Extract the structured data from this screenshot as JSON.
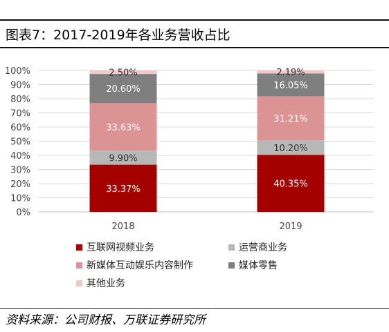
{
  "header": {
    "title": "图表7：2017-2019年各业务营收占比"
  },
  "footer": {
    "source": "资料来源：公司财报、万联证券研究所"
  },
  "colors": {
    "internet_video": "#a50000",
    "operator": "#b7b7b7",
    "new_media_entertainment": "#dc9393",
    "media_retail": "#7f7f7f",
    "other": "#f2c9c9",
    "grid": "#d9d9d9"
  },
  "chart_data": {
    "type": "bar",
    "stacked": true,
    "categories": [
      "2018",
      "2019"
    ],
    "y_ticks": [
      "0%",
      "10%",
      "20%",
      "30%",
      "40%",
      "50%",
      "60%",
      "70%",
      "80%",
      "90%",
      "100%"
    ],
    "ylim": [
      0,
      100
    ],
    "grid": true,
    "legend_position": "bottom",
    "series": [
      {
        "name": "互联网视频业务",
        "values": [
          33.37,
          40.35
        ],
        "labels": [
          "33.37%",
          "40.35%"
        ],
        "color_key": "internet_video"
      },
      {
        "name": "运营商业务",
        "values": [
          9.9,
          10.2
        ],
        "labels": [
          "9.90%",
          "10.20%"
        ],
        "color_key": "operator"
      },
      {
        "name": "新媒体互动娱乐内容制作",
        "values": [
          33.63,
          31.21
        ],
        "labels": [
          "33.63%",
          "31.21%"
        ],
        "color_key": "new_media_entertainment"
      },
      {
        "name": "媒体零售",
        "values": [
          20.6,
          16.05
        ],
        "labels": [
          "20.60%",
          "16.05%"
        ],
        "color_key": "media_retail"
      },
      {
        "name": "其他业务",
        "values": [
          2.5,
          2.19
        ],
        "labels": [
          "2.50%",
          "2.19%"
        ],
        "color_key": "other"
      }
    ]
  }
}
